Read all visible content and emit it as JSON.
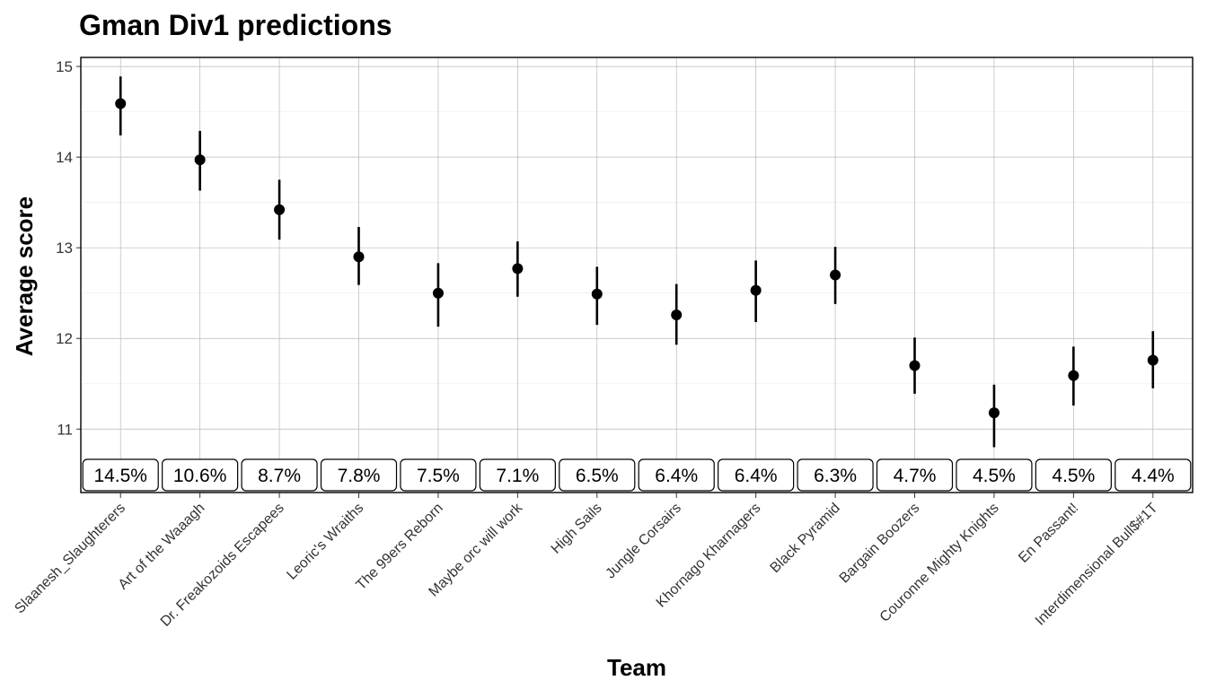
{
  "chart_data": {
    "type": "scatter",
    "title": "Gman Div1 predictions",
    "xlabel": "Team",
    "ylabel": "Average score",
    "ylim": [
      10.3,
      15.1
    ],
    "yticks": [
      11,
      12,
      13,
      14,
      15
    ],
    "grid": true,
    "categories": [
      "Slaanesh_Slaughterers",
      "Art of the Waaagh",
      "Dr. Freakozoids Escapees",
      "Leoric's Wraiths",
      "The 99ers Reborn",
      "Maybe orc will work",
      "High Sails",
      "Jungle Corsairs",
      "Khornago Kharnagers",
      "Black Pyramid",
      "Bargain Boozers",
      "Couronne Mighty Knights",
      "En Passant!",
      "Interdimensional Bull$#1T"
    ],
    "values": [
      14.59,
      13.97,
      13.42,
      12.9,
      12.5,
      12.77,
      12.49,
      12.26,
      12.53,
      12.7,
      11.7,
      11.18,
      11.59,
      11.76
    ],
    "lower": [
      14.24,
      13.63,
      13.09,
      12.59,
      12.13,
      12.46,
      12.15,
      11.93,
      12.18,
      12.38,
      11.39,
      10.8,
      11.26,
      11.45
    ],
    "upper": [
      14.89,
      14.29,
      13.75,
      13.23,
      12.83,
      13.07,
      12.79,
      12.6,
      12.86,
      13.01,
      12.01,
      11.49,
      11.91,
      12.08
    ],
    "labels": [
      "14.5%",
      "10.6%",
      "8.7%",
      "7.8%",
      "7.5%",
      "7.1%",
      "6.5%",
      "6.4%",
      "6.4%",
      "6.3%",
      "4.7%",
      "4.5%",
      "4.5%",
      "4.4%"
    ]
  }
}
